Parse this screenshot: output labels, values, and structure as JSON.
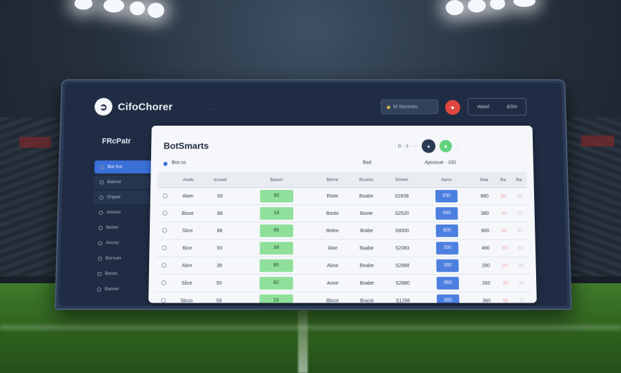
{
  "app": {
    "brand_name": "CifoChorer",
    "brand_logo_glyph": "➲",
    "top_nav": [
      "·  ·  ·  · ·",
      "· · ·  · · ·"
    ]
  },
  "header": {
    "search_text": "M Storeseu",
    "alert_icon": "alert-icon",
    "account_left": "vlasel",
    "account_right": "&Sto"
  },
  "sidebar": {
    "title": "FRcPatr",
    "items": [
      {
        "label": "Bot Sut"
      },
      {
        "label": "Batiner"
      },
      {
        "label": "Shgwe"
      },
      {
        "label": "Arenes"
      },
      {
        "label": "Betrel"
      },
      {
        "label": "Ancrer"
      },
      {
        "label": "Borsuer"
      },
      {
        "label": "Bastis"
      },
      {
        "label": "Bannel"
      }
    ]
  },
  "panel": {
    "title": "BotSmarts",
    "tools_text": "·  B·· 3·· ···",
    "filter_label": "Bos:ss",
    "filter_mid": "Bad",
    "filter_right": "Aposoue · 100",
    "columns": [
      "",
      "Aeeb",
      "ecceel",
      "Bason",
      "Beme",
      "Bsomo",
      "Smem",
      "Aeno",
      "Baa",
      "Ba",
      "Ba"
    ],
    "rows": [
      {
        "name": "Aben",
        "v1": "83",
        "g": "80",
        "c3": "Rtote",
        "c4": "Boabe",
        "c5": "S2838",
        "b": "830",
        "c7": "880",
        "c8": "80",
        "c9": "38",
        "c10": "88"
      },
      {
        "name": "Biose",
        "v1": "88",
        "g": "18",
        "c3": "Boote",
        "c4": "Boote",
        "c5": "S2520",
        "b": "880",
        "c7": "380",
        "c8": "30",
        "c9": "23",
        "c10": "89"
      },
      {
        "name": "Slice",
        "v1": "88",
        "g": "88",
        "c3": "Bolee",
        "c4": "Brabe",
        "c5": "S8000",
        "b": "800",
        "c7": "800",
        "c8": "86",
        "c9": "83",
        "c10": "88"
      },
      {
        "name": "Bice",
        "v1": "93",
        "g": "38",
        "c3": "Aloe",
        "c4": "Baabe",
        "c5": "S2083",
        "b": "330",
        "c7": "480",
        "c8": "89",
        "c9": "80",
        "c10": "83"
      },
      {
        "name": "Abre",
        "v1": "38",
        "g": "80",
        "c3": "Aboe",
        "c4": "Beabe",
        "c5": "S2888",
        "b": "380",
        "c7": "280",
        "c8": "90",
        "c9": "80",
        "c10": "30"
      },
      {
        "name": "Slice",
        "v1": "50",
        "g": "82",
        "c3": "Aooe",
        "c4": "Boabe",
        "c5": "S2880",
        "b": "860",
        "c7": "260",
        "c8": "30",
        "c9": "33",
        "c10": "80"
      },
      {
        "name": "Sbcio",
        "v1": "59",
        "g": "18",
        "c3": "Bbcor",
        "c4": "Bracie",
        "c5": "S1288",
        "b": "880",
        "c7": "360",
        "c8": "86",
        "c9": "33",
        "c10": "80"
      }
    ]
  }
}
